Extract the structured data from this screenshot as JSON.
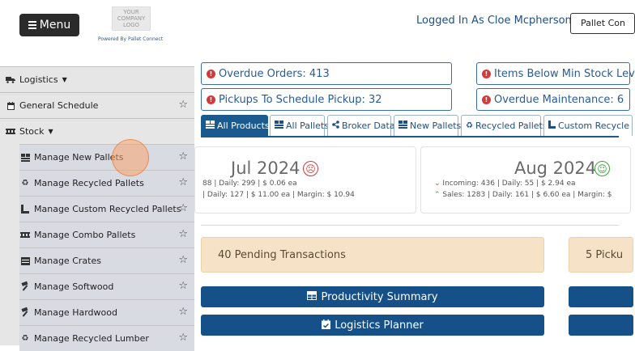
{
  "header": {
    "menu_label": "Menu",
    "logo_line1": "YOUR",
    "logo_line2": "COMPANY",
    "logo_line3": "LOGO",
    "powered_by": "Powered By Pallet Connect",
    "logged_in": "Logged In As Cloe Mcpherson",
    "separator": "|",
    "pallet_button": "Pallet Con"
  },
  "sidebar": {
    "items": [
      {
        "label": "Logistics",
        "icon": "truck-icon",
        "kind": "top",
        "caret": true,
        "star": false
      },
      {
        "label": "General Schedule",
        "icon": "calendar-icon",
        "kind": "top",
        "caret": false,
        "star": true
      },
      {
        "label": "Stock",
        "icon": "pallet-icon",
        "kind": "top",
        "caret": true,
        "star": false
      },
      {
        "label": "Manage New Pallets",
        "icon": "boxes-icon",
        "kind": "sub",
        "star": true
      },
      {
        "label": "Manage Recycled Pallets",
        "icon": "recycle-icon",
        "kind": "sub",
        "star": true
      },
      {
        "label": "Manage Custom Recycled Pallets",
        "icon": "custom-pallet-icon",
        "kind": "sub",
        "star": true
      },
      {
        "label": "Manage Combo Pallets",
        "icon": "pallet-icon",
        "kind": "sub",
        "star": true
      },
      {
        "label": "Manage Crates",
        "icon": "crate-icon",
        "kind": "sub",
        "star": true
      },
      {
        "label": "Manage Softwood",
        "icon": "hammer-icon",
        "kind": "sub",
        "star": true
      },
      {
        "label": "Manage Hardwood",
        "icon": "hammer-icon",
        "kind": "sub",
        "star": true
      },
      {
        "label": "Manage Recycled Lumber",
        "icon": "recycle-icon",
        "kind": "sub",
        "star": true
      }
    ]
  },
  "alerts": [
    {
      "label": "Overdue Orders:",
      "value": "413"
    },
    {
      "label": "Items Below Min Stock Lev",
      "value": ""
    },
    {
      "label": "Pickups To Schedule Pickup:",
      "value": "32"
    },
    {
      "label": "Overdue Maintenance:",
      "value": "6"
    }
  ],
  "tabs": [
    {
      "label": "All Products",
      "icon": "boxes-icon",
      "active": true
    },
    {
      "label": "All Pallets",
      "icon": "boxes-icon",
      "active": false
    },
    {
      "label": "Broker Data",
      "icon": "share-icon",
      "active": false
    },
    {
      "label": "New Pallets",
      "icon": "boxes-icon",
      "active": false
    },
    {
      "label": "Recycled Pallets",
      "icon": "recycle-icon",
      "active": false
    },
    {
      "label": "Custom Recycle",
      "icon": "custom-pallet-icon",
      "active": false
    }
  ],
  "summary": {
    "jul": {
      "month": "Jul 2024",
      "mood": "sad",
      "line1": "88 | Daily: 299 | $ 0.06 ea",
      "line2": "| Daily: 127 | $ 11.00 ea | Margin: $ 10.94"
    },
    "aug": {
      "month": "Aug 2024",
      "mood": "happy",
      "line1": "Incoming: 436 | Daily: 55 | $ 2.94 ea",
      "line2": "Sales: 1283 | Daily: 161 | $ 6.60 ea | Margin: $"
    }
  },
  "pending": {
    "transactions": "40 Pending Transactions",
    "pickups": "5 Picku"
  },
  "buttons": {
    "productivity": "Productivity Summary",
    "logistics": "Logistics Planner"
  },
  "colors": {
    "primary": "#155089",
    "alert_red": "#d23b3b",
    "pending_bg": "#f6e2c6",
    "sad": "#d23b3b",
    "happy": "#3aa63a"
  }
}
